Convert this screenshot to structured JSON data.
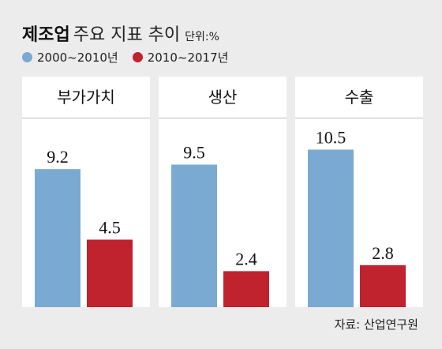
{
  "header": {
    "title_bold": "제조업",
    "title_rest": "주요 지표 추이",
    "unit": "단위:%"
  },
  "legend": [
    {
      "label": "2000~2010년",
      "color": "#7aaad2"
    },
    {
      "label": "2010~2017년",
      "color": "#c0222e"
    }
  ],
  "colors": {
    "series1": "#7aaad2",
    "series2": "#c0222e",
    "panel_bg": "#ffffff",
    "page_bg": "#ececec"
  },
  "chart_data": {
    "type": "bar",
    "title": "제조업 주요 지표 추이",
    "unit": "단위:%",
    "categories": [
      "부가가치",
      "생산",
      "수출"
    ],
    "series": [
      {
        "name": "2000~2010년",
        "values": [
          9.2,
          9.5,
          10.5
        ]
      },
      {
        "name": "2010~2017년",
        "values": [
          4.5,
          2.4,
          2.8
        ]
      }
    ],
    "ylim": [
      0,
      12
    ],
    "grid": false,
    "legend_position": "top-left"
  },
  "source": "자료: 산업연구원"
}
